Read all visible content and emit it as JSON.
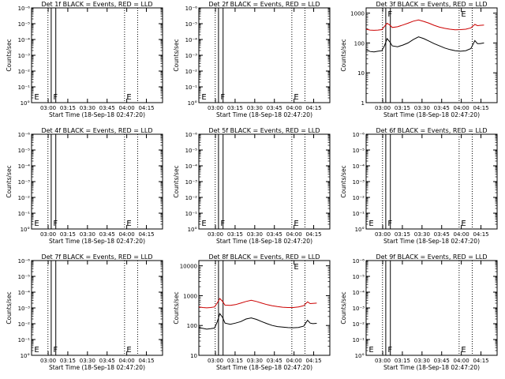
{
  "chart_data": [
    {
      "type": "line",
      "title": "Det 1f BLACK = Events, RED = LLD",
      "xlabel": "Start Time (18-Sep-18 02:47:20)",
      "ylabel": "Counts/sec",
      "x_ticks": [
        "03:00",
        "03:15",
        "03:30",
        "03:45",
        "04:00",
        "04:15"
      ],
      "x_range_minutes": [
        0,
        100
      ],
      "y_ticks": [
        "10°",
        "10⁻¹",
        "10⁻²",
        "10⁻³",
        "10⁻⁴",
        "10⁻⁵",
        "10⁻⁶"
      ],
      "y_scale": "log",
      "y_range": [
        1e-06,
        1
      ],
      "solid_lines": [
        15.0,
        18.5
      ],
      "dotted_lines": [
        12.5,
        71,
        81
      ],
      "annotations": [
        {
          "text": "E",
          "x": 2,
          "y_level": "bottom"
        },
        {
          "text": "F",
          "x": 16.5,
          "y_level": "bottom"
        },
        {
          "text": "E",
          "x": 72.5,
          "y_level": "bottom"
        }
      ],
      "series": []
    },
    {
      "type": "line",
      "title": "Det 2f BLACK = Events, RED = LLD",
      "xlabel": "Start Time (18-Sep-18 02:47:20)",
      "ylabel": "Counts/sec",
      "x_ticks": [
        "03:00",
        "03:15",
        "03:30",
        "03:45",
        "04:00",
        "04:15"
      ],
      "x_range_minutes": [
        0,
        100
      ],
      "y_ticks": [
        "10°",
        "10⁻¹",
        "10⁻²",
        "10⁻³",
        "10⁻⁴",
        "10⁻⁵",
        "10⁻⁶"
      ],
      "y_scale": "log",
      "y_range": [
        1e-06,
        1
      ],
      "solid_lines": [
        15.0,
        18.5
      ],
      "dotted_lines": [
        12.5,
        71,
        81
      ],
      "annotations": [
        {
          "text": "E",
          "x": 2,
          "y_level": "bottom"
        },
        {
          "text": "F",
          "x": 16.5,
          "y_level": "bottom"
        },
        {
          "text": "E",
          "x": 72.5,
          "y_level": "bottom"
        }
      ],
      "series": []
    },
    {
      "type": "line",
      "title": "Det 3f BLACK = Events, RED = LLD",
      "xlabel": "Start Time (18-Sep-18 02:47:20)",
      "ylabel": "Counts/sec",
      "x_ticks": [
        "03:00",
        "03:15",
        "03:30",
        "03:45",
        "04:00",
        "04:15"
      ],
      "x_range_minutes": [
        0,
        100
      ],
      "y_ticks": [
        "1",
        "10",
        "100",
        "1000"
      ],
      "y_scale": "log",
      "y_range": [
        1,
        1500
      ],
      "solid_lines": [
        15.0,
        18.5
      ],
      "dotted_lines": [
        12.5,
        71,
        81
      ],
      "annotations": [
        {
          "text": "F",
          "x": 16.5,
          "y_level": "top"
        },
        {
          "text": "E",
          "x": 72.5,
          "y_level": "top"
        }
      ],
      "series": [
        {
          "color": "#000000",
          "x": [
            0,
            3,
            6,
            9,
            12,
            14,
            16,
            18,
            20,
            24,
            28,
            32,
            36,
            40,
            44,
            48,
            52,
            56,
            60,
            64,
            68,
            72,
            76,
            80,
            83,
            85,
            87,
            90
          ],
          "y": [
            60,
            52,
            50,
            53,
            55,
            80,
            140,
            110,
            80,
            75,
            85,
            100,
            130,
            160,
            140,
            115,
            95,
            80,
            68,
            60,
            55,
            53,
            55,
            65,
            120,
            95,
            95,
            100
          ]
        },
        {
          "color": "#cc0000",
          "x": [
            0,
            3,
            6,
            9,
            12,
            14,
            16,
            18,
            20,
            24,
            28,
            32,
            36,
            40,
            44,
            48,
            52,
            56,
            60,
            64,
            68,
            72,
            76,
            80,
            83,
            85,
            87,
            90
          ],
          "y": [
            290,
            270,
            265,
            270,
            280,
            360,
            460,
            400,
            330,
            350,
            400,
            460,
            540,
            590,
            530,
            460,
            390,
            340,
            310,
            290,
            275,
            280,
            290,
            320,
            420,
            380,
            390,
            400
          ]
        }
      ]
    },
    {
      "type": "line",
      "title": "Det 4f BLACK = Events, RED = LLD",
      "xlabel": "Start Time (18-Sep-18 02:47:20)",
      "ylabel": "Counts/sec",
      "x_ticks": [
        "03:00",
        "03:15",
        "03:30",
        "03:45",
        "04:00",
        "04:15"
      ],
      "x_range_minutes": [
        0,
        100
      ],
      "y_ticks": [
        "10°",
        "10⁻¹",
        "10⁻²",
        "10⁻³",
        "10⁻⁴",
        "10⁻⁵",
        "10⁻⁶"
      ],
      "y_scale": "log",
      "y_range": [
        1e-06,
        1
      ],
      "solid_lines": [
        15.0,
        18.5
      ],
      "dotted_lines": [
        12.5,
        71,
        81
      ],
      "annotations": [
        {
          "text": "E",
          "x": 2,
          "y_level": "bottom"
        },
        {
          "text": "F",
          "x": 16.5,
          "y_level": "bottom"
        },
        {
          "text": "E",
          "x": 72.5,
          "y_level": "bottom"
        }
      ],
      "series": []
    },
    {
      "type": "line",
      "title": "Det 5f BLACK = Events, RED = LLD",
      "xlabel": "Start Time (18-Sep-18 02:47:20)",
      "ylabel": "Counts/sec",
      "x_ticks": [
        "03:00",
        "03:15",
        "03:30",
        "03:45",
        "04:00",
        "04:15"
      ],
      "x_range_minutes": [
        0,
        100
      ],
      "y_ticks": [
        "10°",
        "10⁻¹",
        "10⁻²",
        "10⁻³",
        "10⁻⁴",
        "10⁻⁵",
        "10⁻⁶"
      ],
      "y_scale": "log",
      "y_range": [
        1e-06,
        1
      ],
      "solid_lines": [
        15.0,
        18.5
      ],
      "dotted_lines": [
        12.5,
        71,
        81
      ],
      "annotations": [
        {
          "text": "E",
          "x": 2,
          "y_level": "bottom"
        },
        {
          "text": "F",
          "x": 16.5,
          "y_level": "bottom"
        },
        {
          "text": "E",
          "x": 72.5,
          "y_level": "bottom"
        }
      ],
      "series": []
    },
    {
      "type": "line",
      "title": "Det 6f BLACK = Events, RED = LLD",
      "xlabel": "Start Time (18-Sep-18 02:47:20)",
      "ylabel": "Counts/sec",
      "x_ticks": [
        "03:00",
        "03:15",
        "03:30",
        "03:45",
        "04:00",
        "04:15"
      ],
      "x_range_minutes": [
        0,
        100
      ],
      "y_ticks": [
        "10°",
        "10⁻¹",
        "10⁻²",
        "10⁻³",
        "10⁻⁴",
        "10⁻⁵",
        "10⁻⁶"
      ],
      "y_scale": "log",
      "y_range": [
        1e-06,
        1
      ],
      "solid_lines": [
        15.0,
        18.5
      ],
      "dotted_lines": [
        12.5,
        71,
        81
      ],
      "annotations": [
        {
          "text": "E",
          "x": 2,
          "y_level": "bottom"
        },
        {
          "text": "F",
          "x": 16.5,
          "y_level": "bottom"
        },
        {
          "text": "E",
          "x": 72.5,
          "y_level": "bottom"
        }
      ],
      "series": []
    },
    {
      "type": "line",
      "title": "Det 7f BLACK = Events, RED = LLD",
      "xlabel": "Start Time (18-Sep-18 02:47:20)",
      "ylabel": "Counts/sec",
      "x_ticks": [
        "03:00",
        "03:15",
        "03:30",
        "03:45",
        "04:00",
        "04:15"
      ],
      "x_range_minutes": [
        0,
        100
      ],
      "y_ticks": [
        "10°",
        "10⁻¹",
        "10⁻²",
        "10⁻³",
        "10⁻⁴",
        "10⁻⁵",
        "10⁻⁶"
      ],
      "y_scale": "log",
      "y_range": [
        1e-06,
        1
      ],
      "solid_lines": [
        15.0,
        18.5
      ],
      "dotted_lines": [
        12.5,
        71,
        81
      ],
      "annotations": [
        {
          "text": "E",
          "x": 2,
          "y_level": "bottom"
        },
        {
          "text": "F",
          "x": 16.5,
          "y_level": "bottom"
        },
        {
          "text": "E",
          "x": 72.5,
          "y_level": "bottom"
        }
      ],
      "series": []
    },
    {
      "type": "line",
      "title": "Det 8f BLACK = Events, RED = LLD",
      "xlabel": "Start Time (18-Sep-18 02:47:20)",
      "ylabel": "Counts/sec",
      "x_ticks": [
        "03:00",
        "03:15",
        "03:30",
        "03:45",
        "04:00",
        "04:15"
      ],
      "x_range_minutes": [
        0,
        100
      ],
      "y_ticks": [
        "10",
        "100",
        "1000",
        "10000"
      ],
      "y_scale": "log",
      "y_range": [
        10,
        15000
      ],
      "solid_lines": [
        15.0,
        18.5
      ],
      "dotted_lines": [
        12.5,
        71,
        81
      ],
      "annotations": [
        {
          "text": "E",
          "x": 72.5,
          "y_level": "top"
        }
      ],
      "series": [
        {
          "color": "#000000",
          "x": [
            0,
            3,
            6,
            9,
            12,
            14,
            16,
            18,
            20,
            24,
            28,
            32,
            36,
            40,
            44,
            48,
            52,
            56,
            60,
            64,
            68,
            72,
            76,
            80,
            83,
            85,
            87,
            90
          ],
          "y": [
            85,
            80,
            75,
            78,
            82,
            130,
            250,
            190,
            120,
            110,
            120,
            135,
            165,
            180,
            160,
            135,
            115,
            100,
            92,
            88,
            85,
            84,
            86,
            95,
            150,
            120,
            115,
            118
          ]
        },
        {
          "color": "#cc0000",
          "x": [
            0,
            3,
            6,
            9,
            12,
            14,
            16,
            18,
            20,
            24,
            28,
            32,
            36,
            40,
            44,
            48,
            52,
            56,
            60,
            64,
            68,
            72,
            76,
            80,
            83,
            85,
            87,
            90
          ],
          "y": [
            420,
            400,
            390,
            400,
            420,
            560,
            800,
            650,
            480,
            470,
            500,
            560,
            640,
            700,
            640,
            560,
            500,
            460,
            430,
            410,
            400,
            400,
            420,
            460,
            620,
            540,
            550,
            560
          ]
        }
      ]
    },
    {
      "type": "line",
      "title": "Det 9f BLACK = Events, RED = LLD",
      "xlabel": "Start Time (18-Sep-18 02:47:20)",
      "ylabel": "Counts/sec",
      "x_ticks": [
        "03:00",
        "03:15",
        "03:30",
        "03:45",
        "04:00",
        "04:15"
      ],
      "x_range_minutes": [
        0,
        100
      ],
      "y_ticks": [
        "10°",
        "10⁻¹",
        "10⁻²",
        "10⁻³",
        "10⁻⁴",
        "10⁻⁵",
        "10⁻⁶"
      ],
      "y_scale": "log",
      "y_range": [
        1e-06,
        1
      ],
      "solid_lines": [
        15.0,
        18.5
      ],
      "dotted_lines": [
        12.5,
        71,
        81
      ],
      "annotations": [
        {
          "text": "E",
          "x": 2,
          "y_level": "bottom"
        },
        {
          "text": "F",
          "x": 16.5,
          "y_level": "bottom"
        },
        {
          "text": "E",
          "x": 72.5,
          "y_level": "bottom"
        }
      ],
      "series": []
    }
  ]
}
